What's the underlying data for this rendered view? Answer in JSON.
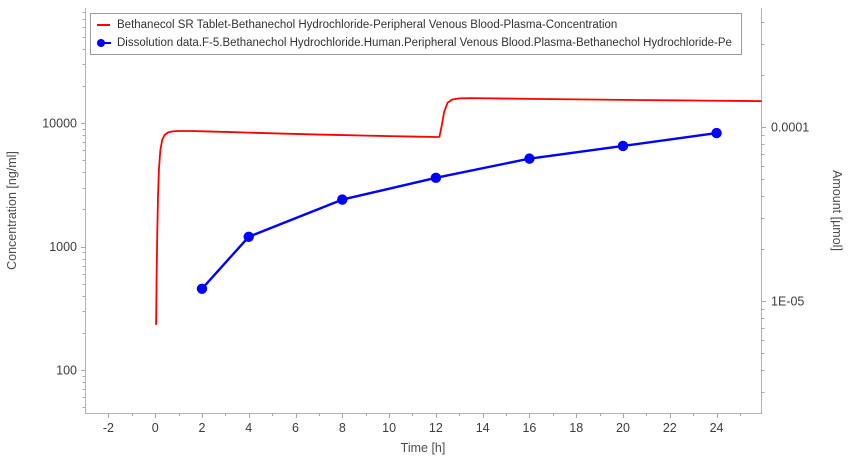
{
  "chart": {
    "background": "#ffffff",
    "axis_color": "#b2b2b2",
    "tick_color": "#a8a8a8",
    "tick_label_color": "#3d3d3d",
    "axis_label_color": "#4d4d4d"
  },
  "legend": {
    "border_color": "#9b9b9b",
    "items": [
      {
        "label": "Bethanecol SR Tablet-Bethanechol Hydrochloride-Peripheral Venous Blood-Plasma-Concentration",
        "color": "#ff0000",
        "marker": "line"
      },
      {
        "label": "Dissolution data.F-5.Bethanechol Hydrochloride.Human.Peripheral Venous Blood.Plasma-Bethanechol Hydrochloride-Pe",
        "color": "#0000ff",
        "marker": "circle-line"
      }
    ]
  },
  "chart_data": {
    "type": "line",
    "title": "",
    "xlabel": "Time [h]",
    "xlim": [
      -3,
      25.9
    ],
    "x_ticks": [
      -2,
      0,
      2,
      4,
      6,
      8,
      10,
      12,
      14,
      16,
      18,
      20,
      22,
      24
    ],
    "x_minor_step": 1,
    "grid": false,
    "legend_position": "top-left inside",
    "y_left": {
      "label": "Concentration [ng/ml]",
      "scale": "log",
      "ticks": [
        100,
        1000,
        10000
      ],
      "tick_labels": [
        "100",
        "1000",
        "10000"
      ],
      "lim": [
        44.9,
        85400
      ]
    },
    "y_right": {
      "label": "Amount [µmol]",
      "scale": "log",
      "ticks": [
        1e-05,
        0.0001
      ],
      "tick_labels": [
        "1E-05",
        "0.0001"
      ],
      "lim": [
        2.27e-06,
        0.000483
      ]
    },
    "series": [
      {
        "name": "Bethanecol SR Tablet-Bethanechol Hydrochloride-Peripheral Venous Blood-Plasma-Concentration",
        "type": "line",
        "color": "#ff0000",
        "line_width": 1.8,
        "axis": "left",
        "x": [
          0.04,
          0.06,
          0.09,
          0.12,
          0.16,
          0.22,
          0.3,
          0.4,
          0.55,
          0.75,
          1,
          1.5,
          2,
          3,
          4,
          5,
          6,
          7,
          8,
          9,
          10,
          11,
          12,
          12.15,
          12.25,
          12.35,
          12.5,
          12.7,
          13,
          13.5,
          14,
          15,
          16,
          17,
          18,
          19,
          20,
          21,
          22,
          23,
          24,
          25,
          25.9
        ],
        "y": [
          235,
          550,
          1300,
          2500,
          4200,
          6000,
          7300,
          8000,
          8400,
          8560,
          8620,
          8620,
          8570,
          8470,
          8360,
          8260,
          8160,
          8070,
          7990,
          7910,
          7840,
          7770,
          7710,
          7730,
          9500,
          12200,
          14600,
          15500,
          15840,
          15900,
          15870,
          15790,
          15700,
          15620,
          15540,
          15470,
          15400,
          15340,
          15280,
          15220,
          15160,
          15100,
          15050
        ]
      },
      {
        "name": "Dissolution data.F-5.Bethanechol Hydrochloride.Human.Peripheral Venous Blood.Plasma-Bethanechol Hydrochloride-Pe",
        "type": "line-marker",
        "color": "#0000ff",
        "line_width": 2.4,
        "marker": "circle",
        "marker_radius": 5.2,
        "axis": "left",
        "x": [
          2,
          4,
          8,
          12,
          16,
          20,
          24
        ],
        "y": [
          455,
          1200,
          2400,
          3600,
          5150,
          6520,
          8300
        ]
      }
    ]
  }
}
